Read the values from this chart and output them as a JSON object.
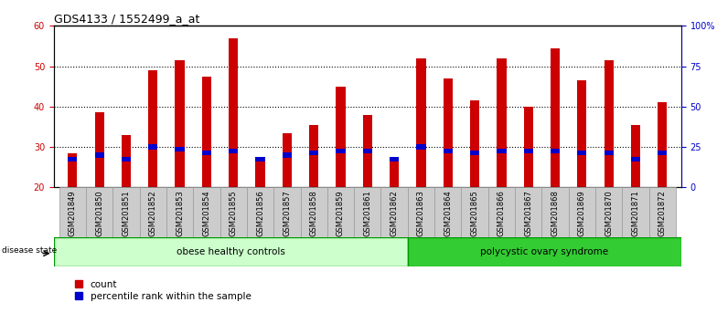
{
  "title": "GDS4133 / 1552499_a_at",
  "samples": [
    "GSM201849",
    "GSM201850",
    "GSM201851",
    "GSM201852",
    "GSM201853",
    "GSM201854",
    "GSM201855",
    "GSM201856",
    "GSM201857",
    "GSM201858",
    "GSM201859",
    "GSM201861",
    "GSM201862",
    "GSM201863",
    "GSM201864",
    "GSM201865",
    "GSM201866",
    "GSM201867",
    "GSM201868",
    "GSM201869",
    "GSM201870",
    "GSM201871",
    "GSM201872"
  ],
  "counts": [
    28.5,
    38.5,
    33.0,
    49.0,
    51.5,
    47.5,
    57.0,
    27.0,
    33.5,
    35.5,
    45.0,
    38.0,
    26.5,
    52.0,
    47.0,
    41.5,
    52.0,
    40.0,
    54.5,
    46.5,
    51.5,
    35.5,
    41.0
  ],
  "percentile_ranks": [
    27.0,
    28.0,
    27.0,
    30.0,
    29.5,
    28.5,
    29.0,
    27.0,
    28.0,
    28.5,
    29.0,
    29.0,
    27.0,
    30.0,
    29.0,
    28.5,
    29.0,
    29.0,
    29.0,
    28.5,
    28.5,
    27.0,
    28.5
  ],
  "group1_label": "obese healthy controls",
  "group2_label": "polycystic ovary syndrome",
  "group1_count": 13,
  "bar_color_red": "#cc0000",
  "bar_color_blue": "#0000cc",
  "group1_bg": "#ccffcc",
  "group2_bg": "#33cc33",
  "ylim_left": [
    20,
    60
  ],
  "ylim_right": [
    0,
    100
  ],
  "yticks_left": [
    20,
    30,
    40,
    50,
    60
  ],
  "yticks_right": [
    0,
    25,
    50,
    75,
    100
  ],
  "bar_width": 0.35,
  "blue_bar_width": 0.35,
  "blue_bar_height": 1.2,
  "legend_count": "count",
  "legend_percentile": "percentile rank within the sample",
  "title_fontsize": 9,
  "tick_fontsize": 6,
  "label_fontsize": 7.5
}
